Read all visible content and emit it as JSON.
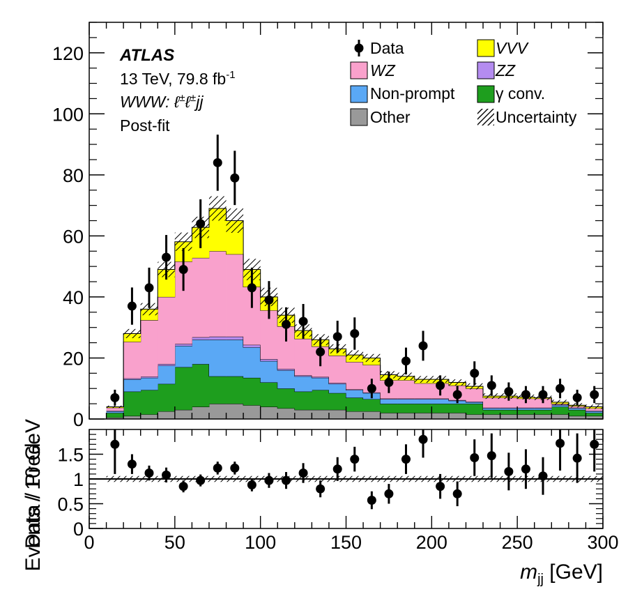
{
  "chart_data": {
    "type": "stacked-histogram",
    "bin_width": 10,
    "bin_edges_range": [
      10,
      300
    ],
    "xlabel": "m_jj [GeV]",
    "xlabel_main": "m",
    "xlabel_sub": "jj",
    "xlabel_unit": " [GeV]",
    "ylabel": "Events / 10 GeV",
    "ratio_ylabel": "Data / Pred.",
    "xlim": [
      0,
      300
    ],
    "ylim": [
      0,
      130
    ],
    "ratio_ylim": [
      0,
      2
    ],
    "xticks": [
      "0",
      "50",
      "100",
      "150",
      "200",
      "250",
      "300"
    ],
    "yticks": [
      "0",
      "20",
      "40",
      "60",
      "80",
      "100",
      "120"
    ],
    "ratio_yticks": [
      "0",
      "0.5",
      "1",
      "1.5"
    ],
    "annotations": {
      "experiment": "ATLAS",
      "energy_lumi": "13 TeV, 79.8 fb",
      "lumi_exp": "-1",
      "channel_a": "WWW",
      "channel_b": ": ℓ",
      "channel_sup1": "±",
      "channel_c": "ℓ",
      "channel_sup2": "±",
      "channel_d": "jj",
      "fit_status": "Post-fit"
    },
    "legend": {
      "placement": "top-right",
      "entries": [
        {
          "key": "data",
          "label": "Data"
        },
        {
          "key": "vvv",
          "label": "VVV"
        },
        {
          "key": "wz",
          "label": "WZ"
        },
        {
          "key": "zz",
          "label": "ZZ"
        },
        {
          "key": "nonprompt",
          "label": "Non-prompt"
        },
        {
          "key": "gconv",
          "label": "γ conv."
        },
        {
          "key": "other",
          "label": "Other"
        },
        {
          "key": "unc",
          "label": "Uncertainty"
        }
      ]
    },
    "colors": {
      "other": "#999999",
      "gconv": "#1e9e1e",
      "nonprompt": "#5aa8f5",
      "zz": "#b48cf0",
      "wz": "#f9a1cc",
      "vvv": "#ffff00"
    },
    "bin_low_edges": [
      10,
      20,
      30,
      40,
      50,
      60,
      70,
      80,
      90,
      100,
      110,
      120,
      130,
      140,
      150,
      160,
      170,
      180,
      190,
      200,
      210,
      220,
      230,
      240,
      250,
      260,
      270,
      280,
      290
    ],
    "series": [
      {
        "key": "other",
        "values": [
          0.5,
          1,
          1.5,
          2.5,
          3,
          4,
          5,
          5,
          4.5,
          4,
          3.5,
          3,
          3,
          3,
          2.5,
          2.5,
          2,
          2,
          2,
          2,
          2,
          1.5,
          1.5,
          1.5,
          1.5,
          1.5,
          1.5,
          1,
          1
        ]
      },
      {
        "key": "gconv",
        "values": [
          1.5,
          8,
          8,
          9,
          14,
          14,
          9,
          9,
          9,
          8,
          6.5,
          6,
          6.5,
          5.5,
          4.5,
          4,
          3,
          3,
          3,
          3,
          3,
          3.5,
          1.5,
          1.5,
          1.5,
          1.5,
          2.5,
          2,
          1
        ]
      },
      {
        "key": "nonprompt",
        "values": [
          0.5,
          4,
          4,
          6,
          7,
          8,
          12,
          12,
          10,
          7,
          6,
          5,
          4,
          3,
          2.5,
          2,
          1.5,
          1.5,
          1.5,
          1.5,
          1,
          0.5,
          0.5,
          0.5,
          0.5,
          0.5,
          0.5,
          0.5,
          0.5
        ]
      },
      {
        "key": "zz",
        "values": [
          0.2,
          0.3,
          0.4,
          0.5,
          0.6,
          0.8,
          1,
          1,
          0.8,
          0.6,
          0.4,
          0.3,
          0.3,
          0.3,
          0.2,
          0.2,
          0.2,
          0.2,
          0.2,
          0.2,
          0.2,
          0.2,
          0.2,
          0.2,
          0.2,
          0.2,
          0.2,
          0.2,
          0.2
        ]
      },
      {
        "key": "wz",
        "values": [
          1,
          12,
          18.5,
          22,
          27,
          26,
          28,
          27,
          19,
          16,
          14,
          12,
          10,
          9,
          9,
          9,
          6,
          6,
          5,
          5,
          4.8,
          4.3,
          3.3,
          3.3,
          3,
          3,
          0.3,
          0.5,
          0.8
        ]
      },
      {
        "key": "vvv",
        "values": [
          0.3,
          2.7,
          3.6,
          9,
          6.5,
          10,
          14,
          11,
          5.7,
          4.4,
          3.6,
          2.7,
          2.2,
          2.2,
          2.3,
          2.3,
          1.8,
          1.3,
          1.3,
          1.3,
          1,
          0.7,
          0.5,
          0.5,
          0.5,
          0.3,
          0.5,
          0.3,
          0.5
        ]
      }
    ],
    "uncertainty_halfwidth": [
      0.4,
      1.5,
      2.0,
      2.5,
      3.0,
      3.5,
      4.0,
      4.0,
      3.5,
      3.0,
      2.5,
      2.0,
      1.8,
      1.5,
      1.5,
      1.3,
      1.2,
      1.2,
      1.1,
      1.1,
      1.0,
      1.0,
      0.9,
      0.9,
      0.8,
      0.8,
      0.8,
      0.7,
      0.7
    ],
    "ratio_uncertainty": 0.06,
    "data": {
      "x": [
        15,
        25,
        35,
        45,
        55,
        65,
        75,
        85,
        95,
        105,
        115,
        125,
        135,
        145,
        155,
        165,
        175,
        185,
        195,
        205,
        215,
        225,
        235,
        245,
        255,
        265,
        275,
        285,
        295
      ],
      "y": [
        7,
        37,
        43,
        53,
        49,
        64,
        84,
        79,
        43,
        39,
        31,
        32,
        22,
        27,
        28,
        10,
        12,
        19,
        24,
        11,
        8,
        15,
        11,
        9,
        8,
        8,
        10,
        7,
        8
      ],
      "err": [
        2.6,
        6.1,
        6.6,
        7.3,
        7.0,
        8.0,
        9.2,
        8.9,
        6.6,
        6.2,
        5.6,
        5.7,
        4.7,
        5.2,
        5.3,
        3.2,
        3.5,
        4.4,
        4.9,
        3.3,
        2.8,
        3.9,
        3.3,
        3.0,
        2.8,
        2.8,
        3.2,
        2.6,
        2.8
      ]
    },
    "ratio": {
      "x": [
        15,
        25,
        35,
        45,
        55,
        65,
        75,
        85,
        95,
        105,
        115,
        125,
        135,
        145,
        155,
        165,
        175,
        185,
        195,
        205,
        215,
        225,
        235,
        245,
        255,
        265,
        275,
        285,
        295
      ],
      "y": [
        1.7,
        1.3,
        1.12,
        1.08,
        0.85,
        0.97,
        1.22,
        1.22,
        0.88,
        0.97,
        0.97,
        1.12,
        0.8,
        1.2,
        1.4,
        0.57,
        0.7,
        1.4,
        1.8,
        0.85,
        0.7,
        1.43,
        1.47,
        1.15,
        1.2,
        1.06,
        1.72,
        1.42,
        1.7
      ],
      "err": [
        0.6,
        0.2,
        0.15,
        0.15,
        0.12,
        0.12,
        0.13,
        0.13,
        0.13,
        0.15,
        0.17,
        0.2,
        0.17,
        0.24,
        0.25,
        0.18,
        0.2,
        0.3,
        0.37,
        0.25,
        0.25,
        0.37,
        0.45,
        0.38,
        0.4,
        0.38,
        0.55,
        0.5,
        0.55
      ]
    }
  }
}
